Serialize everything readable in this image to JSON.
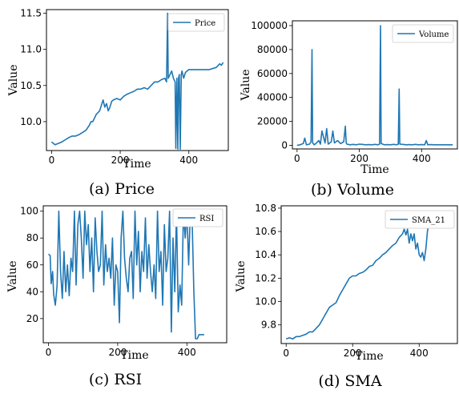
{
  "figure": {
    "series_color": "#1f77b4"
  },
  "chart_data": [
    {
      "type": "line",
      "caption": "(a) Price",
      "xlabel": "Time",
      "ylabel": "Value",
      "legend": "Price",
      "legend_position": "top-right",
      "xlim": [
        -15,
        515
      ],
      "ylim": [
        9.6,
        11.55
      ],
      "xticks": [
        0,
        200,
        400
      ],
      "yticks": [
        10.0,
        10.5,
        11.0,
        11.5
      ],
      "ytick_labels": [
        "10.0",
        "10.5",
        "11.0",
        "11.5"
      ],
      "x": [
        0,
        5,
        10,
        20,
        30,
        40,
        50,
        60,
        70,
        80,
        90,
        100,
        110,
        115,
        120,
        125,
        130,
        140,
        150,
        155,
        160,
        165,
        170,
        175,
        180,
        190,
        200,
        210,
        220,
        230,
        240,
        250,
        260,
        270,
        280,
        290,
        300,
        310,
        320,
        330,
        335,
        338,
        340,
        345,
        350,
        355,
        360,
        362,
        365,
        368,
        370,
        372,
        375,
        378,
        380,
        385,
        390,
        400,
        420,
        440,
        460,
        480,
        490,
        495,
        500
      ],
      "y": [
        9.72,
        9.7,
        9.68,
        9.7,
        9.72,
        9.75,
        9.78,
        9.8,
        9.8,
        9.82,
        9.85,
        9.88,
        9.95,
        10.0,
        10.0,
        10.05,
        10.1,
        10.15,
        10.3,
        10.2,
        10.25,
        10.15,
        10.2,
        10.28,
        10.3,
        10.32,
        10.3,
        10.35,
        10.38,
        10.4,
        10.42,
        10.45,
        10.45,
        10.47,
        10.45,
        10.5,
        10.55,
        10.55,
        10.58,
        10.6,
        10.55,
        11.5,
        10.6,
        10.65,
        10.7,
        10.6,
        10.55,
        9.63,
        10.6,
        9.62,
        10.6,
        10.65,
        9.62,
        10.65,
        10.7,
        10.6,
        10.68,
        10.72,
        10.72,
        10.72,
        10.72,
        10.75,
        10.8,
        10.78,
        10.82
      ]
    },
    {
      "type": "line",
      "caption": "(b) Volume",
      "xlabel": "Time",
      "ylabel": "Value",
      "legend": "Volume",
      "legend_position": "top-right",
      "xlim": [
        -15,
        515
      ],
      "ylim": [
        -3000,
        104000
      ],
      "xticks": [
        0,
        200,
        400
      ],
      "yticks": [
        0,
        20000,
        40000,
        60000,
        80000,
        100000
      ],
      "ytick_labels": [
        "0",
        "20000",
        "40000",
        "60000",
        "80000",
        "100000"
      ],
      "x": [
        0,
        10,
        20,
        25,
        30,
        40,
        45,
        48,
        50,
        55,
        60,
        70,
        75,
        80,
        90,
        95,
        100,
        110,
        115,
        120,
        130,
        140,
        150,
        155,
        158,
        160,
        170,
        180,
        190,
        200,
        210,
        220,
        230,
        240,
        250,
        260,
        265,
        268,
        270,
        280,
        290,
        300,
        310,
        320,
        325,
        328,
        330,
        340,
        350,
        360,
        370,
        380,
        390,
        400,
        410,
        415,
        420,
        430,
        440,
        460,
        480,
        500
      ],
      "y": [
        0,
        500,
        1500,
        6000,
        500,
        1000,
        3000,
        80000,
        2000,
        500,
        1500,
        4000,
        1000,
        12000,
        2000,
        14000,
        1000,
        3000,
        12000,
        2000,
        4000,
        1500,
        3000,
        16000,
        2000,
        1000,
        500,
        800,
        500,
        1000,
        800,
        500,
        600,
        500,
        800,
        500,
        1000,
        100000,
        1500,
        500,
        600,
        500,
        800,
        500,
        1000,
        47000,
        1000,
        800,
        500,
        600,
        500,
        800,
        500,
        600,
        500,
        4000,
        500,
        600,
        500,
        500,
        500,
        500
      ]
    },
    {
      "type": "line",
      "caption": "(c) RSI",
      "xlabel": "Time",
      "ylabel": "Value",
      "legend": "RSI",
      "legend_position": "top-right",
      "xlim": [
        -15,
        515
      ],
      "ylim": [
        2,
        104
      ],
      "xticks": [
        0,
        200,
        400
      ],
      "yticks": [
        20,
        40,
        60,
        80,
        100
      ],
      "ytick_labels": [
        "20",
        "40",
        "60",
        "80",
        "100"
      ],
      "x": [
        0,
        5,
        8,
        12,
        15,
        20,
        25,
        30,
        35,
        40,
        45,
        50,
        55,
        60,
        65,
        70,
        75,
        80,
        85,
        90,
        95,
        100,
        105,
        110,
        115,
        120,
        125,
        130,
        135,
        140,
        145,
        150,
        155,
        160,
        165,
        170,
        175,
        180,
        185,
        190,
        195,
        200,
        205,
        210,
        215,
        220,
        225,
        230,
        235,
        240,
        245,
        250,
        255,
        260,
        265,
        270,
        275,
        280,
        285,
        290,
        295,
        300,
        305,
        310,
        315,
        320,
        325,
        330,
        335,
        340,
        345,
        350,
        355,
        360,
        365,
        370,
        375,
        380,
        385,
        390,
        395,
        400,
        405,
        410,
        415,
        420,
        425,
        430,
        435,
        440,
        445,
        450
      ],
      "y": [
        68,
        67,
        46,
        55,
        38,
        30,
        45,
        100,
        55,
        35,
        70,
        40,
        60,
        37,
        65,
        55,
        100,
        45,
        90,
        100,
        80,
        50,
        100,
        75,
        90,
        55,
        80,
        40,
        95,
        70,
        55,
        60,
        100,
        45,
        75,
        55,
        65,
        50,
        80,
        30,
        60,
        55,
        17,
        80,
        100,
        65,
        50,
        40,
        65,
        70,
        35,
        100,
        60,
        85,
        40,
        70,
        55,
        95,
        50,
        75,
        55,
        40,
        60,
        35,
        100,
        55,
        70,
        30,
        90,
        55,
        65,
        100,
        10,
        80,
        40,
        100,
        25,
        45,
        30,
        100,
        80,
        100,
        60,
        100,
        95,
        40,
        5,
        5,
        8,
        8,
        8,
        8
      ]
    },
    {
      "type": "line",
      "caption": "(d) SMA",
      "xlabel": "Time",
      "ylabel": "Value",
      "legend": "SMA_21",
      "legend_position": "top-right",
      "xlim": [
        -15,
        515
      ],
      "ylim": [
        9.64,
        10.82
      ],
      "xticks": [
        0,
        200,
        400
      ],
      "yticks": [
        9.8,
        10.0,
        10.2,
        10.4,
        10.6,
        10.8
      ],
      "ytick_labels": [
        "9.8",
        "10.0",
        "10.2",
        "10.4",
        "10.6",
        "10.8"
      ],
      "x": [
        0,
        10,
        20,
        30,
        40,
        50,
        60,
        70,
        80,
        90,
        100,
        110,
        120,
        130,
        140,
        150,
        160,
        170,
        180,
        190,
        200,
        210,
        220,
        230,
        240,
        250,
        260,
        270,
        280,
        290,
        300,
        310,
        320,
        330,
        340,
        350,
        355,
        360,
        365,
        370,
        375,
        380,
        385,
        390,
        395,
        400,
        405,
        410,
        415,
        420,
        425,
        430,
        440,
        450,
        460
      ],
      "y": [
        9.68,
        9.69,
        9.68,
        9.7,
        9.7,
        9.71,
        9.72,
        9.74,
        9.74,
        9.77,
        9.8,
        9.85,
        9.9,
        9.95,
        9.97,
        9.99,
        10.05,
        10.1,
        10.15,
        10.2,
        10.22,
        10.22,
        10.24,
        10.25,
        10.27,
        10.3,
        10.31,
        10.35,
        10.37,
        10.4,
        10.42,
        10.45,
        10.48,
        10.5,
        10.55,
        10.58,
        10.62,
        10.57,
        10.62,
        10.5,
        10.58,
        10.52,
        10.58,
        10.45,
        10.5,
        10.4,
        10.38,
        10.42,
        10.35,
        10.45,
        10.6,
        10.7,
        10.7,
        10.72,
        10.72
      ]
    }
  ]
}
